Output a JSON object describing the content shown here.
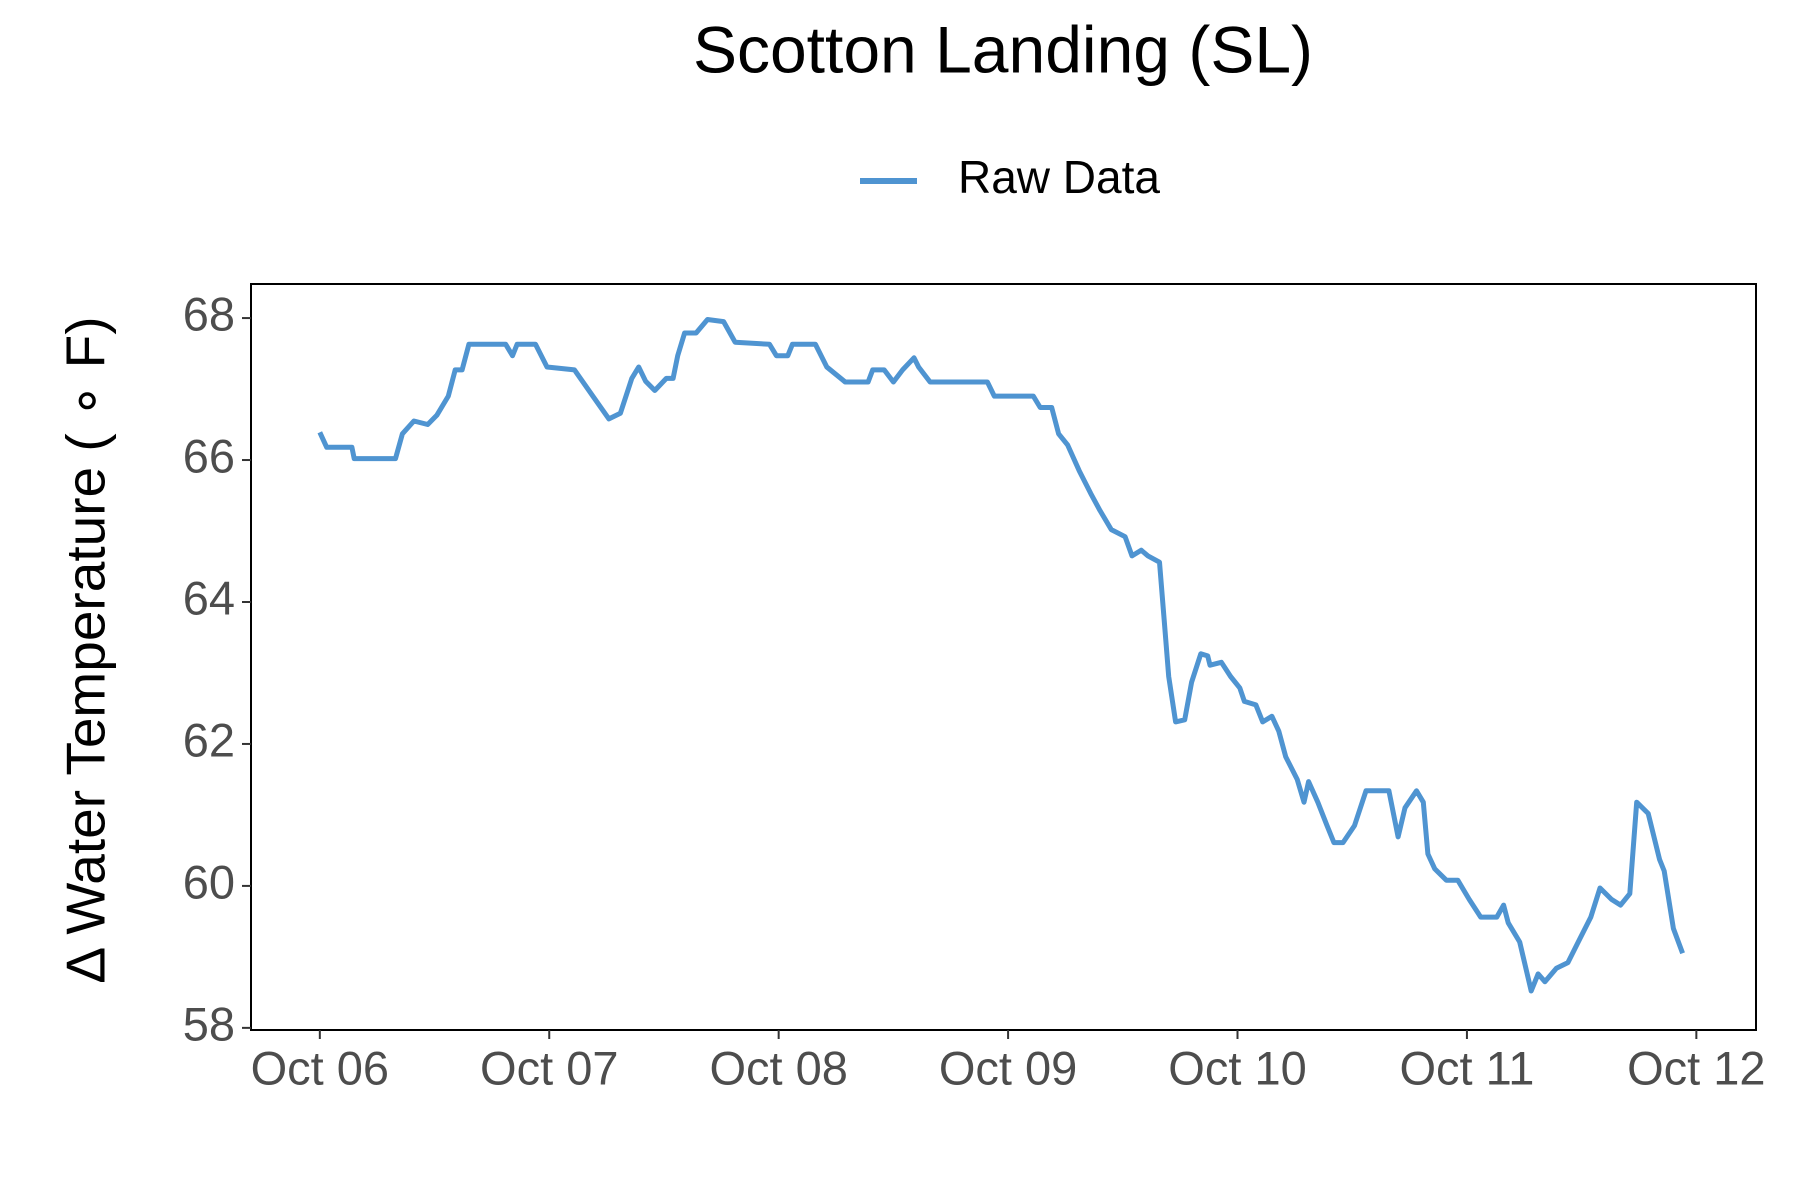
{
  "chart_data": {
    "type": "line",
    "title": "Scotton Landing (SL)",
    "y_label": "Δ Water Temperature ( ∘ F)",
    "x": [
      6.0,
      6.03,
      6.14,
      6.15,
      6.33,
      6.36,
      6.41,
      6.47,
      6.51,
      6.56,
      6.59,
      6.62,
      6.65,
      6.81,
      6.84,
      6.86,
      6.94,
      6.99,
      7.11,
      7.19,
      7.26,
      7.31,
      7.36,
      7.39,
      7.42,
      7.46,
      7.51,
      7.54,
      7.56,
      7.59,
      7.64,
      7.69,
      7.76,
      7.81,
      7.96,
      7.99,
      8.04,
      8.06,
      8.16,
      8.21,
      8.29,
      8.39,
      8.41,
      8.46,
      8.5,
      8.54,
      8.59,
      8.61,
      8.66,
      8.91,
      8.94,
      9.11,
      9.14,
      9.19,
      9.22,
      9.26,
      9.31,
      9.36,
      9.4,
      9.45,
      9.51,
      9.54,
      9.58,
      9.61,
      9.66,
      9.68,
      9.7,
      9.73,
      9.77,
      9.8,
      9.84,
      9.87,
      9.88,
      9.93,
      9.97,
      10.01,
      10.03,
      10.08,
      10.11,
      10.15,
      10.18,
      10.21,
      10.26,
      10.29,
      10.31,
      10.35,
      10.39,
      10.42,
      10.46,
      10.51,
      10.56,
      10.66,
      10.7,
      10.73,
      10.78,
      10.81,
      10.83,
      10.86,
      10.91,
      10.96,
      11.01,
      11.06,
      11.13,
      11.16,
      11.18,
      11.23,
      11.28,
      11.31,
      11.34,
      11.39,
      11.44,
      11.49,
      11.54,
      11.58,
      11.63,
      11.67,
      11.71,
      11.74,
      11.79,
      11.84,
      11.86,
      11.9,
      11.94
    ],
    "series": [
      {
        "name": "Raw Data",
        "color": "#4f94d1",
        "values": [
          66.39,
          66.18,
          66.18,
          66.02,
          66.02,
          66.37,
          66.55,
          66.5,
          66.63,
          66.9,
          67.27,
          67.27,
          67.63,
          67.63,
          67.47,
          67.63,
          67.63,
          67.31,
          67.27,
          66.9,
          66.58,
          66.66,
          67.15,
          67.31,
          67.11,
          66.98,
          67.15,
          67.15,
          67.47,
          67.79,
          67.79,
          67.98,
          67.95,
          67.66,
          67.63,
          67.47,
          67.47,
          67.63,
          67.63,
          67.31,
          67.1,
          67.1,
          67.27,
          67.27,
          67.1,
          67.27,
          67.44,
          67.31,
          67.1,
          67.1,
          66.9,
          66.9,
          66.74,
          66.74,
          66.37,
          66.21,
          65.85,
          65.53,
          65.29,
          65.02,
          64.92,
          64.65,
          64.73,
          64.65,
          64.56,
          63.76,
          62.95,
          62.31,
          62.34,
          62.87,
          63.27,
          63.24,
          63.11,
          63.15,
          62.95,
          62.79,
          62.6,
          62.55,
          62.31,
          62.39,
          62.18,
          61.82,
          61.5,
          61.18,
          61.47,
          61.18,
          60.85,
          60.61,
          60.61,
          60.85,
          61.34,
          61.34,
          60.69,
          61.1,
          61.34,
          61.18,
          60.45,
          60.24,
          60.08,
          60.08,
          59.81,
          59.56,
          59.56,
          59.73,
          59.48,
          59.21,
          58.52,
          58.76,
          58.65,
          58.84,
          58.92,
          59.24,
          59.56,
          59.97,
          59.81,
          59.73,
          59.89,
          61.18,
          61.02,
          60.37,
          60.21,
          59.4,
          59.05
        ]
      }
    ],
    "xlim": [
      5.7,
      12.26
    ],
    "xticks": [
      {
        "value": 6,
        "label": "Oct 06"
      },
      {
        "value": 7,
        "label": "Oct 07"
      },
      {
        "value": 8,
        "label": "Oct 08"
      },
      {
        "value": 9,
        "label": "Oct 09"
      },
      {
        "value": 10,
        "label": "Oct 10"
      },
      {
        "value": 11,
        "label": "Oct 11"
      },
      {
        "value": 12,
        "label": "Oct 12"
      }
    ],
    "ylim": [
      57.97,
      68.48
    ],
    "yticks": [
      58,
      60,
      62,
      64,
      66,
      68
    ],
    "legend": "top",
    "grid": false
  }
}
